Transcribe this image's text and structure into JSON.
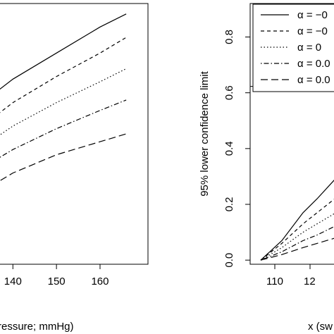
{
  "chart_data": [
    {
      "type": "line",
      "panel": "left",
      "title": "",
      "xlabel": "ressure; mmHg)",
      "ylabel": "",
      "xlim": [
        133,
        171
      ],
      "ylim": [
        0,
        1
      ],
      "xticks": [
        "140",
        "150",
        "160"
      ],
      "grid": false,
      "series": [
        {
          "x": [
            133,
            140,
            150,
            160,
            166
          ],
          "y": [
            0.62,
            0.71,
            0.81,
            0.91,
            0.96
          ],
          "dash": "solid"
        },
        {
          "x": [
            133,
            140,
            150,
            160,
            166
          ],
          "y": [
            0.53,
            0.62,
            0.72,
            0.81,
            0.87
          ],
          "dash": "short-dash"
        },
        {
          "x": [
            133,
            140,
            150,
            160,
            166
          ],
          "y": [
            0.45,
            0.53,
            0.62,
            0.7,
            0.75
          ],
          "dash": "dotted"
        },
        {
          "x": [
            133,
            140,
            150,
            160,
            166
          ],
          "y": [
            0.37,
            0.44,
            0.52,
            0.59,
            0.63
          ],
          "dash": "dot-dash"
        },
        {
          "x": [
            133,
            140,
            150,
            160,
            166
          ],
          "y": [
            0.28,
            0.35,
            0.42,
            0.47,
            0.5
          ],
          "dash": "long-dash"
        }
      ]
    },
    {
      "type": "line",
      "panel": "right",
      "title": "",
      "xlabel": "x (sw",
      "ylabel": "95% lower confidence limit",
      "xlim": [
        103,
        140
      ],
      "ylim": [
        -0.04,
        0.92
      ],
      "yticks": [
        0.0,
        0.2,
        0.4,
        0.6,
        0.8
      ],
      "ytick_labels": [
        "0.0",
        "0.2",
        "0.4",
        "0.6",
        "0.8"
      ],
      "xticks": [
        "110",
        "12"
      ],
      "grid": false,
      "legend": {
        "placement": "top-right",
        "entries": [
          {
            "greek": "α",
            "rest": " = −0",
            "dash": "solid"
          },
          {
            "greek": "α",
            "rest": " = −0",
            "dash": "short-dash"
          },
          {
            "greek": "α",
            "rest": " = 0",
            "dash": "dotted"
          },
          {
            "greek": "α",
            "rest": " = 0.0",
            "dash": "dot-dash"
          },
          {
            "greek": "α",
            "rest": " = 0.0",
            "dash": "long-dash"
          }
        ]
      },
      "hline": 0.623,
      "series": [
        {
          "x": [
            106,
            112,
            118,
            122,
            130
          ],
          "y": [
            0.0,
            0.07,
            0.17,
            0.22,
            0.33
          ],
          "dash": "solid"
        },
        {
          "x": [
            106,
            112,
            118,
            122,
            130
          ],
          "y": [
            0.0,
            0.06,
            0.13,
            0.17,
            0.25
          ],
          "dash": "short-dash"
        },
        {
          "x": [
            106,
            112,
            118,
            122,
            130
          ],
          "y": [
            0.0,
            0.045,
            0.1,
            0.13,
            0.19
          ],
          "dash": "dotted"
        },
        {
          "x": [
            106,
            112,
            118,
            122,
            130
          ],
          "y": [
            0.0,
            0.03,
            0.07,
            0.09,
            0.14
          ],
          "dash": "dot-dash"
        },
        {
          "x": [
            106,
            112,
            118,
            122,
            130
          ],
          "y": [
            0.0,
            0.02,
            0.045,
            0.06,
            0.09
          ],
          "dash": "long-dash"
        }
      ]
    }
  ]
}
